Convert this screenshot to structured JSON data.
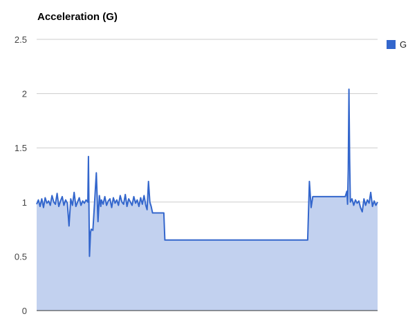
{
  "chart_data": {
    "type": "area",
    "title": "Acceleration (G)",
    "xlabel": "",
    "ylabel": "",
    "ylim": [
      0,
      2.5
    ],
    "yticks": [
      0,
      0.5,
      1,
      1.5,
      2,
      2.5
    ],
    "ytick_labels": [
      "0",
      "0.5",
      "1",
      "1.5",
      "2",
      "2.5"
    ],
    "grid": true,
    "legend_position": "top-right",
    "series": [
      {
        "name": "G",
        "color": "#3366cc",
        "fill_color": "#c2d1ef",
        "x_min": 0,
        "x_max": 100,
        "x": [
          0,
          0.5,
          1.0,
          1.5,
          2.0,
          2.5,
          3.0,
          3.5,
          4.0,
          4.5,
          5.0,
          5.5,
          6.0,
          6.5,
          7.0,
          7.5,
          8.0,
          8.5,
          9.0,
          9.5,
          10.0,
          10.5,
          11.0,
          11.5,
          12.0,
          12.5,
          13.0,
          13.5,
          14.0,
          14.5,
          15.0,
          15.2,
          15.5,
          15.8,
          16.0,
          16.5,
          17.0,
          17.5,
          18.0,
          18.4,
          18.8,
          19.0,
          19.5,
          20.0,
          20.5,
          21.0,
          21.5,
          22.0,
          22.5,
          23.0,
          23.5,
          24.0,
          24.5,
          25.0,
          25.5,
          26.0,
          26.5,
          27.0,
          27.5,
          28.0,
          28.5,
          29.0,
          29.5,
          30.0,
          30.5,
          31.0,
          31.5,
          32.0,
          32.4,
          32.8,
          33.2,
          33.6,
          34.0,
          34.5,
          35.0,
          35.5,
          36.0,
          36.5,
          37.0,
          37.3,
          37.6,
          38.0,
          38.5,
          39.0,
          39.5,
          40.0,
          40.5,
          41.0,
          41.5,
          42.0,
          42.5,
          43.0,
          43.5,
          44.0,
          44.5,
          45.0,
          45.5,
          46.0,
          46.5,
          47.0,
          47.5,
          48.0,
          48.5,
          49.0,
          49.5,
          50.0,
          50.5,
          51.0,
          51.5,
          52.0,
          52.5,
          53.0,
          53.5,
          54.0,
          54.5,
          55.0,
          55.5,
          56.0,
          56.5,
          57.0,
          57.5,
          58.0,
          58.5,
          59.0,
          59.5,
          60.0,
          60.5,
          61.0,
          61.5,
          62.0,
          62.5,
          63.0,
          63.5,
          64.0,
          64.5,
          65.0,
          65.5,
          66.0,
          66.5,
          67.0,
          67.5,
          68.0,
          68.5,
          69.0,
          69.5,
          70.0,
          70.5,
          71.0,
          71.5,
          72.0,
          72.5,
          73.0,
          73.5,
          74.0,
          74.5,
          75.0,
          75.5,
          76.0,
          76.5,
          77.0,
          77.5,
          78.0,
          78.5,
          79.0,
          79.5,
          80.0,
          80.5,
          81.0,
          81.5,
          82.0,
          82.5,
          83.0,
          83.5,
          84.0,
          84.5,
          85.0,
          85.5,
          86.0,
          86.5,
          87.0,
          87.5,
          88.0,
          88.5,
          89.0,
          89.5,
          90.0,
          90.5,
          91.0,
          91.2,
          91.4,
          91.6,
          91.8,
          92.0,
          92.5,
          93.0,
          93.5,
          94.0,
          94.5,
          95.0,
          95.5,
          96.0,
          96.5,
          97.0,
          97.5,
          98.0,
          98.5,
          99.0,
          99.5,
          100
        ],
        "values": [
          0.98,
          1.02,
          0.96,
          1.03,
          0.95,
          1.04,
          0.99,
          1.01,
          0.97,
          1.06,
          1.0,
          0.98,
          1.08,
          0.96,
          1.01,
          1.05,
          0.97,
          1.02,
          0.99,
          0.78,
          1.03,
          0.97,
          1.09,
          0.96,
          1.0,
          1.04,
          0.97,
          1.01,
          0.99,
          1.02,
          1.0,
          1.42,
          0.5,
          0.72,
          0.75,
          0.74,
          1.0,
          1.27,
          0.82,
          1.06,
          0.96,
          1.02,
          0.98,
          1.05,
          0.97,
          1.01,
          1.03,
          0.95,
          1.04,
          0.99,
          1.02,
          0.97,
          1.06,
          1.0,
          0.98,
          1.07,
          0.96,
          1.03,
          1.0,
          0.97,
          1.05,
          0.99,
          1.02,
          0.96,
          1.04,
          0.98,
          1.06,
          0.97,
          0.93,
          1.19,
          1.0,
          0.96,
          0.9,
          0.9,
          0.9,
          0.9,
          0.9,
          0.9,
          0.9,
          0.9,
          0.65,
          0.65,
          0.65,
          0.65,
          0.65,
          0.65,
          0.65,
          0.65,
          0.65,
          0.65,
          0.65,
          0.65,
          0.65,
          0.65,
          0.65,
          0.65,
          0.65,
          0.65,
          0.65,
          0.65,
          0.65,
          0.65,
          0.65,
          0.65,
          0.65,
          0.65,
          0.65,
          0.65,
          0.65,
          0.65,
          0.65,
          0.65,
          0.65,
          0.65,
          0.65,
          0.65,
          0.65,
          0.65,
          0.65,
          0.65,
          0.65,
          0.65,
          0.65,
          0.65,
          0.65,
          0.65,
          0.65,
          0.65,
          0.65,
          0.65,
          0.65,
          0.65,
          0.65,
          0.65,
          0.65,
          0.65,
          0.65,
          0.65,
          0.65,
          0.65,
          0.65,
          0.65,
          0.65,
          0.65,
          0.65,
          0.65,
          0.65,
          0.65,
          0.65,
          0.65,
          0.65,
          0.65,
          0.65,
          0.65,
          0.65,
          0.65,
          0.65,
          0.65,
          0.65,
          0.65,
          0.65,
          0.65,
          0.65,
          0.65,
          0.65,
          1.19,
          0.95,
          1.05,
          1.05,
          1.05,
          1.05,
          1.05,
          1.05,
          1.05,
          1.05,
          1.05,
          1.05,
          1.05,
          1.05,
          1.05,
          1.05,
          1.05,
          1.05,
          1.05,
          1.05,
          1.05,
          1.05,
          1.1,
          0.98,
          1.3,
          2.04,
          1.4,
          1.0,
          1.03,
          0.97,
          1.02,
          0.99,
          1.01,
          0.95,
          0.91,
          1.03,
          0.97,
          1.02,
          0.99,
          1.09,
          0.96,
          1.01,
          0.97,
          1.0
        ]
      }
    ]
  }
}
